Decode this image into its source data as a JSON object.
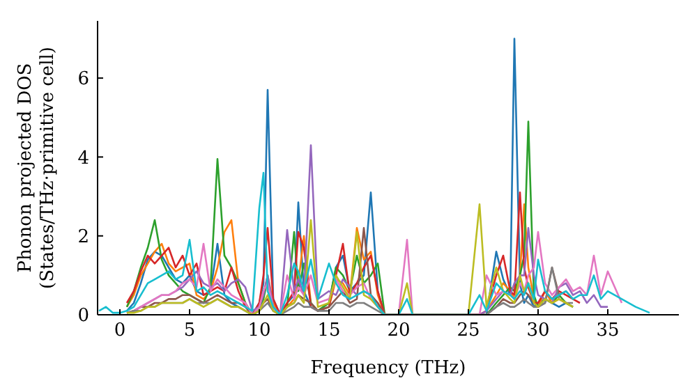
{
  "chart_data": {
    "type": "line",
    "xlabel": "Frequency (THz)",
    "ylabel": "Phonon projected DOS\n(States/THz·primitive cell)",
    "x": [
      -1.5,
      -1,
      -0.5,
      0,
      0.5,
      1,
      1.5,
      2,
      2.5,
      3,
      3.5,
      4,
      4.5,
      5,
      5.5,
      6,
      6.5,
      7,
      7.5,
      8,
      8.5,
      9,
      9.5,
      10,
      10.3,
      10.6,
      11,
      11.5,
      12,
      12.5,
      12.8,
      13.2,
      13.7,
      14.2,
      15,
      15.5,
      16,
      16.5,
      17,
      17.5,
      18,
      18.5,
      19,
      20,
      20.6,
      21,
      25,
      25.8,
      26.3,
      27,
      27.5,
      28,
      28.3,
      28.7,
      29,
      29.3,
      29.7,
      30,
      30.5,
      31,
      31.5,
      32,
      32.5,
      33,
      33.5,
      34,
      34.5,
      35,
      36,
      37,
      38
    ],
    "xlim": [
      -1.6,
      40.1
    ],
    "xticks": [
      0,
      5,
      10,
      15,
      20,
      25,
      30,
      35
    ],
    "ylim": [
      0,
      7.45
    ],
    "yticks": [
      0,
      2,
      4,
      6
    ],
    "grid": false,
    "legend": false,
    "marker": "none",
    "line_style": "solid",
    "series": [
      {
        "color": "#1f77b4",
        "values": [
          null,
          null,
          null,
          null,
          0.1,
          0.3,
          0.8,
          1.4,
          1.6,
          1.5,
          1.2,
          0.9,
          0.8,
          1.0,
          0.6,
          0.5,
          0.6,
          1.8,
          0.5,
          0.3,
          0.2,
          0.1,
          0,
          0.3,
          0.8,
          5.7,
          0.4,
          0,
          0.3,
          0.5,
          2.85,
          0.6,
          0.2,
          0.1,
          0.3,
          1.2,
          1.5,
          0.6,
          0.8,
          1.0,
          3.1,
          0.6,
          0,
          0,
          0,
          0,
          0,
          0,
          0,
          1.6,
          0.9,
          0.5,
          7.0,
          0.8,
          0.3,
          0.5,
          0.2,
          0.3,
          0.4,
          0.3,
          0.2,
          0.3,
          0.2,
          null,
          null,
          null,
          null,
          null,
          null,
          null,
          null
        ]
      },
      {
        "color": "#ff7f0e",
        "values": [
          null,
          null,
          null,
          null,
          0.2,
          0.5,
          1.0,
          1.3,
          1.6,
          1.8,
          1.3,
          1.1,
          1.2,
          1.3,
          0.5,
          0.4,
          0.6,
          1.2,
          2.1,
          2.4,
          0.8,
          0.3,
          0,
          0.2,
          0.5,
          1.0,
          0.3,
          0,
          0.2,
          0.4,
          0.8,
          2.0,
          0.3,
          0.1,
          0.2,
          0.9,
          0.8,
          0.5,
          2.2,
          1.4,
          1.6,
          0.5,
          0,
          0,
          0,
          0,
          0,
          0,
          0.1,
          0.5,
          0.8,
          0.6,
          0.4,
          1.0,
          2.8,
          1.2,
          0.4,
          0.2,
          0.6,
          0.3,
          0.4,
          0.3,
          0.2,
          null,
          null,
          null,
          null,
          null,
          null,
          null,
          null
        ]
      },
      {
        "color": "#2ca02c",
        "values": [
          null,
          null,
          null,
          null,
          0.2,
          0.6,
          1.2,
          1.7,
          2.4,
          1.4,
          1.0,
          0.8,
          0.6,
          0.5,
          0.4,
          0.3,
          0.7,
          3.95,
          1.5,
          1.2,
          0.8,
          0.3,
          0,
          0.2,
          0.4,
          0.9,
          0.2,
          0,
          0.2,
          2.1,
          0.6,
          1.3,
          0.3,
          0.1,
          0.3,
          1.2,
          1.0,
          0.6,
          1.5,
          0.8,
          1.0,
          1.3,
          0,
          0,
          0,
          0,
          0,
          0,
          0,
          0.3,
          0.5,
          0.7,
          0.6,
          1.0,
          1.5,
          4.9,
          0.5,
          0.2,
          0.4,
          0.3,
          0.5,
          0.3,
          0.2,
          null,
          null,
          null,
          null,
          null,
          null,
          null,
          null
        ]
      },
      {
        "color": "#d62728",
        "values": [
          null,
          null,
          null,
          null,
          0.3,
          0.6,
          1.1,
          1.5,
          1.3,
          1.5,
          1.7,
          1.2,
          1.5,
          1.0,
          1.3,
          0.5,
          0.6,
          0.7,
          0.6,
          1.2,
          0.6,
          0.2,
          0,
          0.3,
          1.0,
          2.2,
          0.4,
          0,
          0.3,
          0.6,
          2.1,
          1.7,
          0.2,
          0.1,
          0.2,
          1.0,
          1.8,
          0.5,
          0.8,
          1.2,
          1.5,
          0.6,
          0,
          0,
          0,
          0,
          0,
          0,
          0.1,
          1.0,
          1.5,
          0.6,
          0.5,
          3.1,
          1.2,
          0.7,
          0.3,
          0.3,
          0.6,
          0.4,
          0.6,
          0.5,
          0.4,
          0.3,
          null,
          null,
          null,
          null,
          null,
          null,
          null
        ]
      },
      {
        "color": "#9467bd",
        "values": [
          null,
          null,
          null,
          null,
          0.05,
          0.1,
          0.2,
          0.3,
          0.4,
          0.5,
          0.5,
          0.6,
          0.7,
          0.9,
          1.1,
          0.8,
          0.7,
          0.8,
          0.6,
          0.8,
          0.9,
          0.7,
          0.1,
          0.2,
          0.5,
          1.0,
          0.2,
          0,
          2.15,
          0.6,
          0.9,
          0.5,
          4.3,
          0.4,
          0.6,
          0.5,
          0.9,
          0.7,
          0.5,
          0.6,
          0.5,
          0.3,
          0,
          0,
          0,
          0,
          0,
          0,
          0.1,
          0.4,
          0.6,
          0.5,
          0.8,
          1.0,
          1.0,
          2.2,
          1.0,
          0.5,
          0.4,
          0.3,
          0.7,
          0.8,
          0.5,
          0.6,
          0.3,
          0.5,
          0.2,
          0.2,
          null,
          null,
          null
        ]
      },
      {
        "color": "#8c564b",
        "values": [
          null,
          null,
          null,
          null,
          0.05,
          0.1,
          0.2,
          0.2,
          0.3,
          0.3,
          0.4,
          0.4,
          0.5,
          0.5,
          0.4,
          0.3,
          0.4,
          0.5,
          0.4,
          0.3,
          0.3,
          0.2,
          0,
          0.1,
          0.3,
          0.4,
          0.1,
          0,
          0.2,
          0.3,
          0.5,
          0.4,
          0.3,
          0.1,
          0.2,
          0.4,
          0.6,
          0.3,
          0.4,
          2.2,
          0.5,
          0.3,
          0,
          0,
          0,
          0,
          0,
          0,
          0,
          0.2,
          0.4,
          0.3,
          0.3,
          0.5,
          0.6,
          0.5,
          0.3,
          0.2,
          0.3,
          1.2,
          0.5,
          0.6,
          0.4,
          null,
          null,
          null,
          null,
          null,
          null,
          null,
          null
        ]
      },
      {
        "color": "#e377c2",
        "values": [
          null,
          null,
          null,
          null,
          0.05,
          0.1,
          0.2,
          0.3,
          0.4,
          0.5,
          0.5,
          0.6,
          0.8,
          0.9,
          0.7,
          1.8,
          0.6,
          0.9,
          0.7,
          0.5,
          0.4,
          0.3,
          0,
          0.2,
          0.6,
          0.8,
          0.2,
          0,
          1.0,
          0.4,
          0.7,
          0.5,
          1.0,
          0.3,
          0.4,
          0.9,
          0.6,
          0.5,
          0.7,
          0.8,
          0.4,
          0.2,
          0,
          0,
          1.9,
          0,
          0,
          0,
          1.0,
          0.5,
          0.6,
          0.5,
          0.4,
          0.8,
          0.6,
          1.0,
          1.2,
          2.1,
          0.8,
          0.5,
          0.7,
          0.9,
          0.6,
          0.7,
          0.5,
          1.5,
          0.5,
          1.1,
          0.3,
          null,
          null
        ]
      },
      {
        "color": "#7f7f7f",
        "values": [
          null,
          null,
          null,
          null,
          0.05,
          0.1,
          0.1,
          0.2,
          0.2,
          0.3,
          0.3,
          0.3,
          0.3,
          0.4,
          0.3,
          0.3,
          0.3,
          0.4,
          0.3,
          0.2,
          0.2,
          0.1,
          0,
          0.1,
          0.2,
          0.3,
          0.1,
          0,
          0.1,
          0.2,
          0.3,
          0.2,
          0.2,
          0.1,
          0.1,
          0.3,
          0.3,
          0.2,
          0.3,
          0.3,
          0.2,
          0.1,
          0,
          0,
          0,
          0,
          0,
          0,
          0,
          0.2,
          0.3,
          0.2,
          0.2,
          0.3,
          0.4,
          0.3,
          0.2,
          0.2,
          0.3,
          1.2,
          0.4,
          0.3,
          0.3,
          null,
          null,
          null,
          null,
          null,
          null,
          null,
          null
        ]
      },
      {
        "color": "#bcbd22",
        "values": [
          null,
          null,
          null,
          null,
          0.05,
          0.05,
          0.1,
          0.2,
          0.2,
          0.3,
          0.3,
          0.3,
          0.3,
          0.4,
          0.3,
          0.2,
          0.3,
          0.4,
          0.3,
          0.2,
          0.2,
          0.1,
          0,
          0.1,
          0.3,
          0.5,
          0.1,
          0,
          0.2,
          0.3,
          0.5,
          0.3,
          2.4,
          0.2,
          0.3,
          1.0,
          0.7,
          0.4,
          2.1,
          0.5,
          0.4,
          0.2,
          0,
          0,
          0.8,
          0,
          0,
          2.8,
          0.2,
          1.2,
          0.6,
          0.4,
          0.3,
          1.0,
          0.6,
          0.8,
          0.3,
          0.2,
          0.4,
          0.3,
          0.4,
          0.3,
          0.2,
          null,
          null,
          null,
          null,
          null,
          null,
          null,
          null
        ]
      },
      {
        "color": "#17becf",
        "values": [
          0.1,
          0.2,
          0.05,
          0.05,
          0.1,
          0.2,
          0.5,
          0.8,
          0.9,
          1.0,
          1.1,
          0.9,
          1.0,
          1.9,
          0.6,
          0.7,
          0.5,
          0.6,
          0.5,
          0.4,
          0.3,
          0.2,
          0.1,
          2.7,
          3.6,
          0.6,
          0.2,
          0,
          0.5,
          1.3,
          1.1,
          0.6,
          1.4,
          0.4,
          1.3,
          0.8,
          0.5,
          0.4,
          0.5,
          0.6,
          0.5,
          0.2,
          0,
          0,
          0.4,
          0,
          0,
          0.5,
          0.1,
          0.8,
          0.6,
          0.5,
          0.4,
          0.6,
          0.5,
          0.8,
          0.4,
          1.4,
          0.6,
          0.4,
          0.5,
          0.6,
          0.4,
          0.5,
          0.5,
          1.0,
          0.4,
          0.6,
          0.4,
          0.2,
          0.05
        ]
      }
    ]
  }
}
